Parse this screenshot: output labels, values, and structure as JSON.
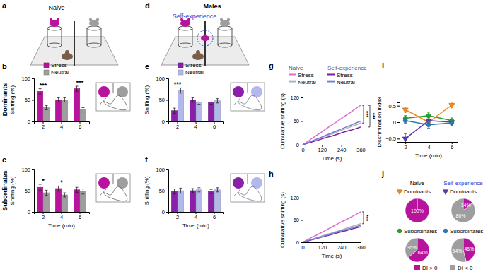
{
  "figure": {
    "schematics": [
      {
        "panel": "a",
        "title": "Naive"
      },
      {
        "panel": "d",
        "title": "Self-experience",
        "header": "Males"
      }
    ],
    "row_labels": [
      "Dominants",
      "Subordinates"
    ]
  },
  "chart_data": [
    {
      "type": "bar",
      "panel": "b",
      "categories": [
        "2",
        "4",
        "6"
      ],
      "series": [
        {
          "name": "Stress",
          "color": "#b8139c",
          "values": [
            70,
            50,
            76
          ],
          "errors": [
            6,
            5,
            6
          ]
        },
        {
          "name": "Neutral",
          "color": "#9e9e9e",
          "values": [
            32,
            50,
            27
          ],
          "errors": [
            5,
            5,
            5
          ]
        }
      ],
      "ylim": [
        0,
        100
      ],
      "yticks": [
        0,
        50,
        100
      ],
      "y_label": "Sniffing (%)",
      "legend": "top",
      "annotations": [
        {
          "text": "***",
          "category": "2"
        },
        {
          "text": "***",
          "category": "6"
        }
      ]
    },
    {
      "type": "bar",
      "panel": "c",
      "categories": [
        "2",
        "4",
        "6"
      ],
      "series": [
        {
          "color": "#b8139c",
          "values": [
            58,
            55,
            52
          ],
          "errors": [
            7,
            6,
            6
          ]
        },
        {
          "color": "#9e9e9e",
          "values": [
            45,
            40,
            48
          ],
          "errors": [
            6,
            5,
            6
          ]
        }
      ],
      "ylim": [
        0,
        100
      ],
      "yticks": [
        0,
        50,
        100
      ],
      "y_label": "Sniffing (%)",
      "x_label": "Time (min)",
      "annotations": [
        {
          "text": "*",
          "category": "2"
        },
        {
          "text": "*",
          "category": "4"
        }
      ]
    },
    {
      "type": "bar",
      "panel": "e",
      "categories": [
        "2",
        "4",
        "6"
      ],
      "series": [
        {
          "name": "Stress",
          "color": "#8a1fa8",
          "values": [
            25,
            50,
            45
          ],
          "errors": [
            6,
            5,
            5
          ]
        },
        {
          "name": "Neutral",
          "color": "#b3b8ea",
          "values": [
            72,
            45,
            48
          ],
          "errors": [
            6,
            5,
            5
          ]
        }
      ],
      "ylim": [
        0,
        100
      ],
      "yticks": [
        0,
        50,
        100
      ],
      "y_label": "Sniffing (%)",
      "legend": "top",
      "annotations": [
        {
          "text": "***",
          "category": "2"
        }
      ]
    },
    {
      "type": "bar",
      "panel": "f",
      "categories": [
        "2",
        "4",
        "6"
      ],
      "series": [
        {
          "color": "#8a1fa8",
          "values": [
            48,
            50,
            48
          ],
          "errors": [
            6,
            5,
            5
          ]
        },
        {
          "color": "#b3b8ea",
          "values": [
            50,
            52,
            52
          ],
          "errors": [
            6,
            5,
            5
          ]
        }
      ],
      "ylim": [
        0,
        100
      ],
      "yticks": [
        0,
        50,
        100
      ],
      "y_label": "Sniffing (%)",
      "x_label": "Time (min)"
    },
    {
      "type": "line",
      "panel": "g",
      "x": [
        0,
        30,
        60,
        90,
        120,
        150,
        180,
        210,
        240,
        270,
        300,
        330,
        360
      ],
      "series": [
        {
          "name": "Stress",
          "group": "Naive",
          "color": "#e06ccf",
          "values": [
            0,
            8,
            17,
            25,
            33,
            42,
            50,
            58,
            67,
            75,
            83,
            92,
            100
          ]
        },
        {
          "name": "Neutral",
          "group": "Naive",
          "color": "#b0b0b0",
          "values": [
            0,
            4.6,
            9,
            14,
            18,
            23,
            27,
            32,
            37,
            41,
            46,
            50,
            55
          ]
        },
        {
          "name": "Stress",
          "group": "Self-experience",
          "color": "#7b1fa2",
          "values": [
            0,
            4,
            7.5,
            11,
            15,
            19,
            22,
            26,
            30,
            34,
            37,
            41,
            45
          ]
        },
        {
          "name": "Neutral",
          "group": "Self-experience",
          "color": "#6f7fd8",
          "values": [
            0,
            5,
            10,
            15,
            20,
            25,
            30,
            35,
            40,
            45,
            50,
            55,
            60
          ]
        }
      ],
      "xlim": [
        0,
        360
      ],
      "xticks": [
        0,
        120,
        240,
        360
      ],
      "ylim": [
        0,
        120
      ],
      "yticks": [
        0,
        60,
        120
      ],
      "x_label": "Time (s)",
      "y_label": "Cumulative sniffing (s)",
      "legend": "top",
      "annotations": [
        {
          "text": "***",
          "series": [
            0,
            1
          ]
        },
        {
          "text": "***",
          "series": [
            0,
            2
          ]
        }
      ]
    },
    {
      "type": "line",
      "panel": "h",
      "x": [
        0,
        30,
        60,
        90,
        120,
        150,
        180,
        210,
        240,
        270,
        300,
        330,
        360
      ],
      "series": [
        {
          "color": "#e06ccf",
          "values": [
            0,
            7,
            14,
            20,
            27,
            34,
            41,
            48,
            55,
            61,
            68,
            75,
            82
          ]
        },
        {
          "color": "#b0b0b0",
          "values": [
            0,
            4,
            8,
            12.5,
            17,
            21,
            25,
            29,
            33,
            37.5,
            42,
            46,
            50
          ]
        },
        {
          "color": "#7b1fa2",
          "values": [
            0,
            3.5,
            7,
            10.5,
            14,
            17.5,
            21,
            24.5,
            28,
            31.5,
            35,
            38.5,
            42
          ]
        },
        {
          "color": "#6f7fd8",
          "values": [
            0,
            4,
            8,
            11.5,
            15,
            19,
            23,
            27,
            31,
            34.5,
            38,
            42,
            46
          ]
        }
      ],
      "xlim": [
        0,
        360
      ],
      "xticks": [
        0,
        120,
        240,
        360
      ],
      "ylim": [
        0,
        120
      ],
      "yticks": [
        0,
        60,
        120
      ],
      "x_label": "Time (s)",
      "y_label": "Cumulative sniffing (s)",
      "annotations": [
        {
          "text": "***",
          "series": [
            0,
            1
          ]
        }
      ]
    },
    {
      "type": "line",
      "panel": "i",
      "x": [
        2,
        4,
        6
      ],
      "series": [
        {
          "color": "#f5881f",
          "marker": "triangle-down",
          "values": [
            0.38,
            0.0,
            0.52
          ],
          "errors": [
            0.08,
            0.1,
            0.06
          ]
        },
        {
          "color": "#5c3bb0",
          "marker": "triangle-down",
          "values": [
            -0.5,
            0.05,
            0.0
          ],
          "errors": [
            0.15,
            0.1,
            0.08
          ]
        },
        {
          "color": "#2ca02c",
          "marker": "circle",
          "values": [
            0.12,
            0.2,
            0.05
          ],
          "errors": [
            0.08,
            0.1,
            0.08
          ]
        },
        {
          "color": "#2c7bb6",
          "marker": "circle",
          "values": [
            0.05,
            -0.08,
            -0.02
          ],
          "errors": [
            0.08,
            0.1,
            0.08
          ]
        }
      ],
      "xlim": [
        1.5,
        6.5
      ],
      "xticks": [
        2,
        4,
        6
      ],
      "ylim": [
        -0.6,
        0.6
      ],
      "yticks": [
        {
          "value": -0.5,
          "label": "−0.5"
        },
        0,
        0.5
      ],
      "x_label": "Time (min)",
      "y_label": "Discrimination index"
    },
    {
      "type": "pie",
      "panel": "j",
      "group": "Naive",
      "title": "Dominants",
      "categories": [
        "DI > 0",
        "DI < 0"
      ],
      "values": [
        100,
        0
      ],
      "value_labels": [
        "100%",
        null
      ],
      "colors": [
        "#b8139c",
        "#9e9e9e"
      ],
      "data_labels": true,
      "legend": "bottom"
    },
    {
      "type": "pie",
      "group": "Self-experience",
      "title": "Dominants",
      "categories": [
        "DI > 0",
        "DI < 0"
      ],
      "values": [
        14,
        86
      ],
      "value_labels": [
        "14%",
        "86%"
      ],
      "colors": [
        "#b8139c",
        "#9e9e9e"
      ],
      "data_labels": true
    },
    {
      "type": "pie",
      "group": "Naive",
      "title": "Subordinates",
      "categories": [
        "DI > 0",
        "DI < 0"
      ],
      "values": [
        64,
        36
      ],
      "value_labels": [
        "64%",
        "36%"
      ],
      "colors": [
        "#b8139c",
        "#9e9e9e"
      ],
      "data_labels": true
    },
    {
      "type": "pie",
      "group": "Self-experience",
      "title": "Subordinates",
      "categories": [
        "DI > 0",
        "DI < 0"
      ],
      "values": [
        46,
        54
      ],
      "value_labels": [
        "46%",
        "54%"
      ],
      "colors": [
        "#b8139c",
        "#9e9e9e"
      ],
      "data_labels": true
    }
  ]
}
